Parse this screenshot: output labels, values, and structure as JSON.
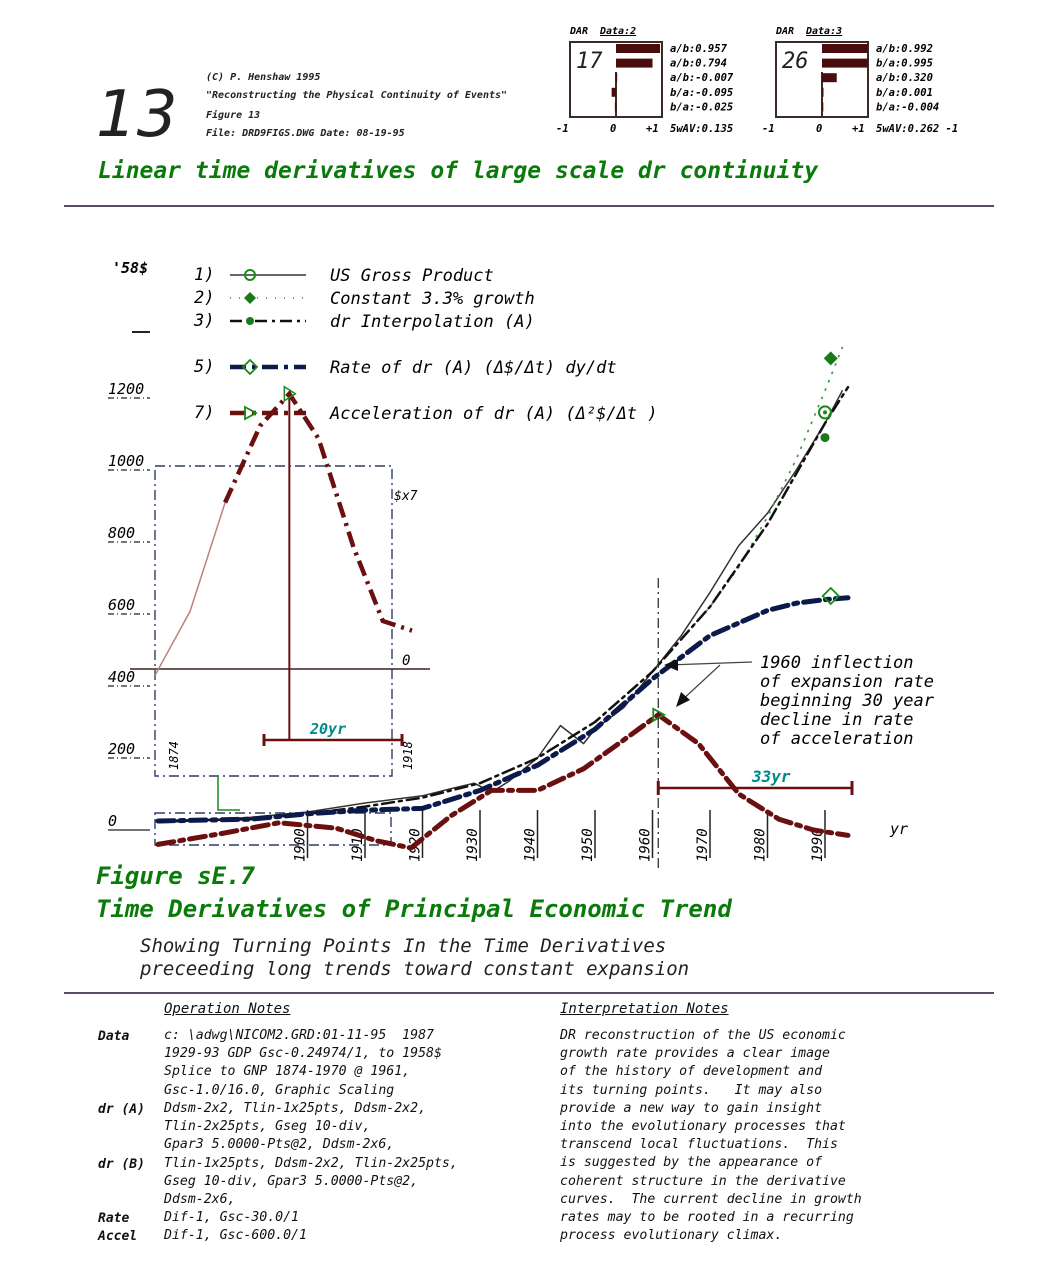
{
  "header": {
    "fig_number": "13",
    "lines": [
      "(C) P. Henshaw 1995",
      "\"Reconstructing the Physical Continuity of Events\"",
      "Figure 13",
      "File: DRD9FIGS.DWG   Date: 08-19-95"
    ],
    "title": "Linear time derivatives of large scale dr continuity"
  },
  "dar": [
    {
      "label": "DAR",
      "data": "Data:2",
      "box_number": "17",
      "bars": [
        0.957,
        0.794,
        -0.007,
        -0.095,
        -0.025
      ],
      "stats": [
        "a/b:0.957",
        "a/b:0.794",
        "a/b:-0.007",
        "b/a:-0.095",
        "b/a:-0.025"
      ],
      "ticks": [
        "-1",
        "0",
        "+1"
      ],
      "swav": "5wAV:0.135"
    },
    {
      "label": "DAR",
      "data": "Data:3",
      "box_number": "26",
      "bars": [
        0.992,
        0.995,
        0.32,
        0.001,
        -0.004
      ],
      "stats": [
        "a/b:0.992",
        "b/a:0.995",
        "a/b:0.320",
        "b/a:0.001",
        "b/a:-0.004"
      ],
      "ticks": [
        "-1",
        "0",
        "+1"
      ],
      "swav": "5wAV:0.262 -1"
    }
  ],
  "chart_data": {
    "type": "line",
    "ylabel": "'58$",
    "xlabel": "yr",
    "ylim": [
      0,
      1300
    ],
    "y_ticks": [
      "1200",
      "1000",
      "800",
      "600",
      "400",
      "200",
      "0"
    ],
    "y_tick_values": [
      1200,
      1000,
      800,
      600,
      400,
      200,
      0
    ],
    "x_ticks": [
      "1900",
      "1910",
      "1920",
      "1930",
      "1940",
      "1950",
      "1960",
      "1970",
      "1980",
      "1990"
    ],
    "x_tick_values": [
      1900,
      1910,
      1920,
      1930,
      1940,
      1950,
      1960,
      1970,
      1980,
      1990
    ],
    "legend": [
      {
        "num": "1)",
        "label": "US Gross Product"
      },
      {
        "num": "2)",
        "label": "Constant 3.3% growth"
      },
      {
        "num": "3)",
        "label": "dr Interpolation (A)"
      },
      {
        "num": "5)",
        "label": "Rate of dr (A) (Δ$/Δt) dy/dt"
      },
      {
        "num": "7)",
        "label": "Acceleration of dr (A) (Δ²$/Δt )"
      }
    ],
    "series": [
      {
        "name": "US Gross Product",
        "color": "#333333",
        "x": [
          1874,
          1880,
          1890,
          1900,
          1910,
          1920,
          1925,
          1929,
          1932,
          1935,
          1940,
          1944,
          1948,
          1950,
          1955,
          1960,
          1965,
          1970,
          1975,
          1980,
          1985,
          1990,
          1993
        ],
        "y": [
          20,
          25,
          35,
          50,
          75,
          95,
          115,
          130,
          105,
          135,
          200,
          290,
          240,
          280,
          340,
          440,
          540,
          660,
          790,
          880,
          1000,
          1130,
          1220
        ]
      },
      {
        "name": "Constant 3.3% growth",
        "color": "#3aa33a",
        "x": [
          1960,
          1965,
          1970,
          1975,
          1980,
          1985,
          1990,
          1993
        ],
        "y": [
          440,
          530,
          620,
          730,
          870,
          1030,
          1220,
          1340
        ]
      },
      {
        "name": "dr Interpolation (A)",
        "color": "#111111",
        "x": [
          1874,
          1890,
          1900,
          1910,
          1920,
          1930,
          1940,
          1950,
          1960,
          1970,
          1980,
          1990,
          1994
        ],
        "y": [
          25,
          30,
          45,
          65,
          90,
          130,
          200,
          300,
          440,
          620,
          850,
          1130,
          1230
        ]
      },
      {
        "name": "Rate of dr (A)",
        "color": "#0b1a4a",
        "x": [
          1874,
          1890,
          1900,
          1910,
          1920,
          1930,
          1940,
          1950,
          1960,
          1970,
          1980,
          1985,
          1990,
          1994
        ],
        "y": [
          25,
          30,
          45,
          55,
          60,
          110,
          180,
          280,
          420,
          540,
          610,
          630,
          640,
          645
        ]
      },
      {
        "name": "Acceleration of dr (A)",
        "color": "#6b1010",
        "x": [
          1874,
          1885,
          1895,
          1905,
          1912,
          1918,
          1925,
          1932,
          1940,
          1948,
          1955,
          1961,
          1968,
          1975,
          1982,
          1988,
          1994
        ],
        "y": [
          -40,
          -10,
          20,
          5,
          -30,
          -50,
          40,
          110,
          110,
          170,
          250,
          320,
          240,
          100,
          30,
          0,
          -15
        ]
      }
    ],
    "markers": [
      {
        "series": "US Gross Product",
        "x": 1990,
        "y": 1160
      },
      {
        "series": "Constant 3.3% growth",
        "x": 1991,
        "y": 1310
      },
      {
        "series": "dr Interpolation (A)",
        "x": 1990,
        "y": 1090
      },
      {
        "series": "Rate of dr (A)",
        "x": 1991,
        "y": 650
      },
      {
        "series": "Acceleration of dr (A)",
        "x": 1961,
        "y": 320
      }
    ],
    "inset": {
      "right_label": "$x7",
      "zero_label": "0",
      "year_start": "1874",
      "year_end": "1918",
      "span_label": "20yr",
      "x": [
        1874,
        1880,
        1886,
        1892,
        1897,
        1902,
        1908,
        1913,
        1918
      ],
      "y": [
        -20,
        180,
        520,
        760,
        860,
        720,
        380,
        150,
        120
      ]
    },
    "annotation": {
      "lines": [
        "1960 inflection",
        "of expansion rate",
        "beginning 30 year",
        "decline in rate",
        "of acceleration"
      ]
    },
    "span_main": "33yr"
  },
  "figure": {
    "caption1": "Figure sE.7",
    "caption2": "Time Derivatives of Principal Economic Trend",
    "sub1": "Showing Turning Points In the Time Derivatives",
    "sub2": "preceeding long trends toward constant expansion"
  },
  "notes": {
    "op_title": "Operation Notes",
    "int_title": "Interpretation Notes",
    "op_labels": [
      "Data",
      "dr (A)",
      "dr (B)",
      "Rate",
      "Accel"
    ],
    "op_text": [
      "c: \\adwg\\NICOM2.GRD:01-11-95  1987\n1929-93 GDP Gsc-0.24974/1, to 1958$\nSplice to GNP 1874-1970 @ 1961,\nGsc-1.0/16.0, Graphic Scaling",
      "Ddsm-2x2, Tlin-1x25pts, Ddsm-2x2,\nTlin-2x25pts, Gseg 10-div,\nGpar3 5.0000-Pts@2, Ddsm-2x6,",
      "Tlin-1x25pts, Ddsm-2x2, Tlin-2x25pts,\nGseg 10-div, Gpar3 5.0000-Pts@2,\nDdsm-2x6,",
      "Dif-1, Gsc-30.0/1",
      "Dif-1, Gsc-600.0/1"
    ],
    "int_text": "DR reconstruction of the US economic\ngrowth rate provides a clear image\nof the history of development and\nits turning points.   It may also\nprovide a new way to gain insight\ninto the evolutionary processes that\ntranscend local fluctuations.  This\nis suggested by the appearance of\ncoherent structure in the derivative\ncurves.  The current decline in growth\nrates may to be rooted in a recurring\nprocess evolutionary climax."
  }
}
